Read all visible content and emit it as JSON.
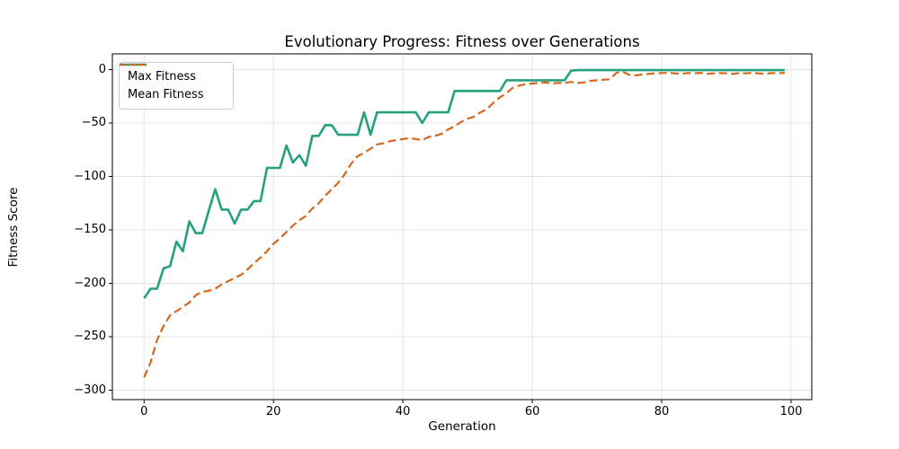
{
  "title": "Evolutionary Progress: Fitness over Generations",
  "chart_data": {
    "type": "line",
    "title": "Evolutionary Progress: Fitness over Generations",
    "xlabel": "Generation",
    "ylabel": "Fitness Score",
    "xlim": [
      -4.9,
      103.2
    ],
    "ylim": [
      -308.8,
      14.7
    ],
    "xticks": [
      0,
      20,
      40,
      60,
      80,
      100
    ],
    "yticks": [
      0,
      -50,
      -100,
      -150,
      -200,
      -250,
      -300
    ],
    "grid": true,
    "grid_color": "#e4e4e4",
    "spine_color": "#000000",
    "legend_position": "upper-left",
    "x": [
      0,
      1,
      2,
      3,
      4,
      5,
      6,
      7,
      8,
      9,
      10,
      11,
      12,
      13,
      14,
      15,
      16,
      17,
      18,
      19,
      20,
      21,
      22,
      23,
      24,
      25,
      26,
      27,
      28,
      29,
      30,
      31,
      32,
      33,
      34,
      35,
      36,
      37,
      38,
      39,
      40,
      41,
      42,
      43,
      44,
      45,
      46,
      47,
      48,
      49,
      50,
      51,
      52,
      53,
      54,
      55,
      56,
      57,
      58,
      59,
      60,
      61,
      62,
      63,
      64,
      65,
      66,
      67,
      68,
      69,
      70,
      71,
      72,
      73,
      74,
      75,
      76,
      77,
      78,
      79,
      80,
      81,
      82,
      83,
      84,
      85,
      86,
      87,
      88,
      89,
      90,
      91,
      92,
      93,
      94,
      95,
      96,
      97,
      98,
      99
    ],
    "series": [
      {
        "name": "Max Fitness",
        "color": "#26a17e",
        "line_style": "solid",
        "line_width": 2.6,
        "values": [
          -214,
          -205,
          -205,
          -186,
          -184,
          -161,
          -170,
          -142,
          -153,
          -153,
          -132,
          -112,
          -131,
          -131,
          -144,
          -131,
          -131,
          -123,
          -123,
          -92,
          -92,
          -92,
          -71,
          -87,
          -80,
          -90,
          -62,
          -62,
          -52,
          -52,
          -61,
          -61,
          -61,
          -61,
          -40,
          -61,
          -40,
          -40,
          -40,
          -40,
          -40,
          -40,
          -40,
          -50,
          -40,
          -40,
          -40,
          -40,
          -20,
          -20,
          -20,
          -20,
          -20,
          -20,
          -20,
          -20,
          -10,
          -10,
          -10,
          -10,
          -10,
          -10,
          -10,
          -10,
          -10,
          -10,
          -1,
          -0.5,
          -0.5,
          -0.5,
          -0.5,
          -0.5,
          -0.5,
          -0.5,
          -0.5,
          -0.5,
          -0.5,
          -0.5,
          -0.5,
          -0.5,
          -0.5,
          -0.5,
          -0.5,
          -0.5,
          -0.5,
          -0.5,
          -0.5,
          -0.5,
          -0.5,
          -0.5,
          -0.5,
          -0.5,
          -0.5,
          -0.5,
          -0.5,
          -0.5,
          -0.5,
          -0.5,
          -0.5,
          -0.5
        ]
      },
      {
        "name": "Mean Fitness",
        "color": "#d2691e",
        "line_style": "dashed",
        "line_width": 2.2,
        "values": [
          -288,
          -274,
          -253,
          -240,
          -230,
          -226,
          -222,
          -218,
          -211,
          -208,
          -207,
          -205,
          -201,
          -198,
          -195,
          -192,
          -187,
          -181,
          -176,
          -170,
          -163,
          -158,
          -152,
          -146,
          -141,
          -137,
          -130,
          -125,
          -118,
          -112,
          -106,
          -98,
          -88,
          -81,
          -78,
          -74,
          -70,
          -69,
          -67,
          -66,
          -65,
          -64,
          -65,
          -66,
          -63,
          -62,
          -60,
          -56,
          -53,
          -49,
          -46,
          -44,
          -40,
          -37,
          -31,
          -26,
          -22,
          -17,
          -15,
          -13.5,
          -13,
          -12.5,
          -12,
          -13,
          -12.5,
          -12.5,
          -11.5,
          -12.5,
          -12,
          -10.5,
          -10,
          -9.5,
          -9,
          -3,
          -2,
          -5,
          -5.5,
          -4.5,
          -4,
          -3.5,
          -3.2,
          -3,
          -3.5,
          -4,
          -3.2,
          -3.5,
          -3,
          -4,
          -3.5,
          -3.2,
          -3.5,
          -4,
          -3.2,
          -3.5,
          -3,
          -3.5,
          -4,
          -3.2,
          -3.5,
          -3
        ]
      }
    ]
  }
}
